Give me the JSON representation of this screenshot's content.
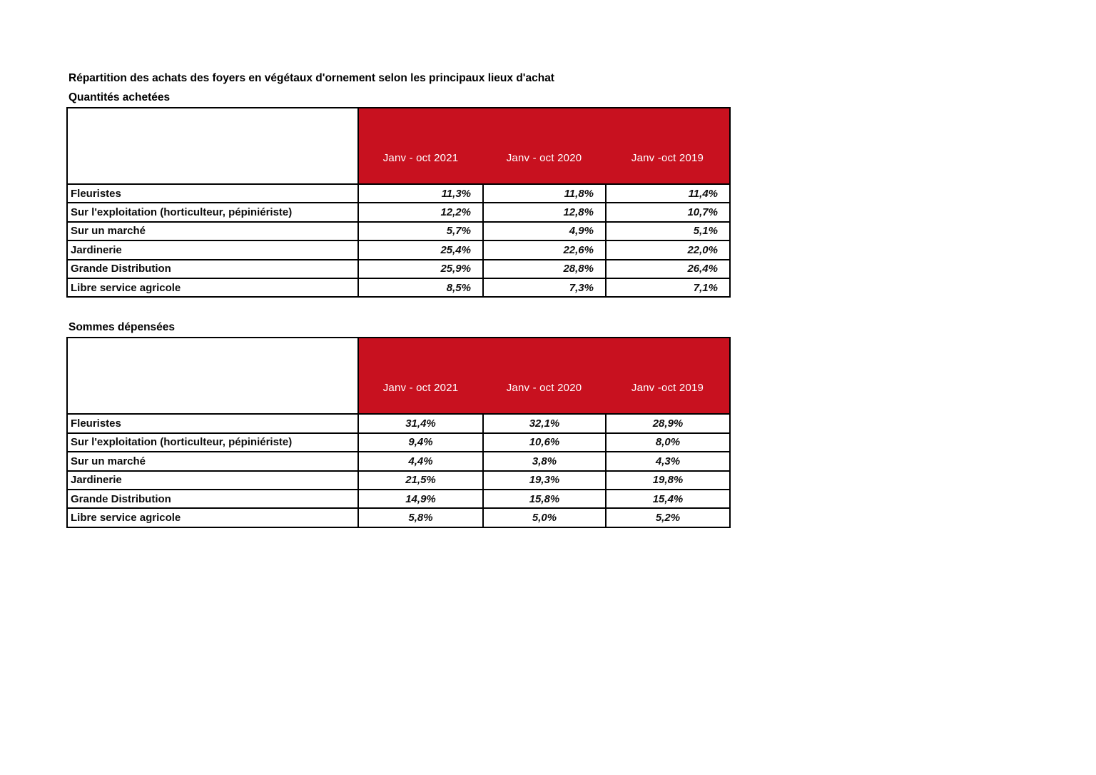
{
  "document": {
    "title": "Répartition des achats des foyers en végétaux d'ornement selon les principaux lieux d'achat"
  },
  "colors": {
    "header_bg": "#c8111f",
    "header_text": "#ffffff",
    "border": "#000000"
  },
  "tables": [
    {
      "subtitle": "Quantités achetées",
      "columns": [
        "Janv - oct 2021",
        "Janv - oct 2020",
        "Janv -oct 2019"
      ],
      "value_align": "right",
      "rows": [
        {
          "label": "Fleuristes",
          "values": [
            "11,3%",
            "11,8%",
            "11,4%"
          ]
        },
        {
          "label": "Sur l'exploitation (horticulteur, pépiniériste)",
          "values": [
            "12,2%",
            "12,8%",
            "10,7%"
          ]
        },
        {
          "label": "Sur un marché",
          "values": [
            "5,7%",
            "4,9%",
            "5,1%"
          ]
        },
        {
          "label": "Jardinerie",
          "values": [
            "25,4%",
            "22,6%",
            "22,0%"
          ]
        },
        {
          "label": "Grande Distribution",
          "values": [
            "25,9%",
            "28,8%",
            "26,4%"
          ]
        },
        {
          "label": "Libre service agricole",
          "values": [
            "8,5%",
            "7,3%",
            "7,1%"
          ]
        }
      ]
    },
    {
      "subtitle": "Sommes dépensées",
      "columns": [
        "Janv - oct 2021",
        "Janv - oct 2020",
        "Janv -oct 2019"
      ],
      "value_align": "center",
      "rows": [
        {
          "label": "Fleuristes",
          "values": [
            "31,4%",
            "32,1%",
            "28,9%"
          ]
        },
        {
          "label": "Sur l'exploitation (horticulteur, pépiniériste)",
          "values": [
            "9,4%",
            "10,6%",
            "8,0%"
          ]
        },
        {
          "label": "Sur un marché",
          "values": [
            "4,4%",
            "3,8%",
            "4,3%"
          ]
        },
        {
          "label": "Jardinerie",
          "values": [
            "21,5%",
            "19,3%",
            "19,8%"
          ]
        },
        {
          "label": "Grande Distribution",
          "values": [
            "14,9%",
            "15,8%",
            "15,4%"
          ]
        },
        {
          "label": "Libre service agricole",
          "values": [
            "5,8%",
            "5,0%",
            "5,2%"
          ]
        }
      ]
    }
  ]
}
